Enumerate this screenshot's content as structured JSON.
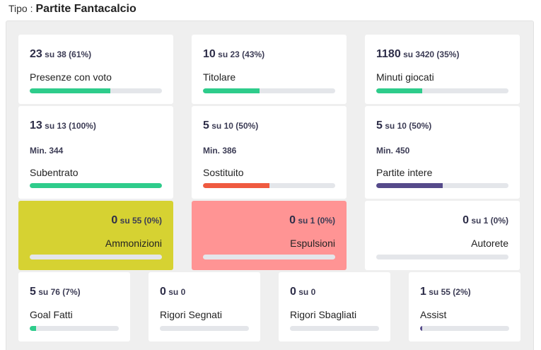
{
  "header": {
    "tipo_label": "Tipo :",
    "title": "Partite Fantacalcio"
  },
  "colors": {
    "green": "#2ecc8b",
    "red": "#ef5a40",
    "purple": "#554a8a",
    "yellow": "#d6d232",
    "pink": "#ff9494"
  },
  "row1": [
    {
      "value": "23",
      "rest": "su 38 (61%)",
      "label": "Presenze con voto",
      "fraction": 0.61
    },
    {
      "value": "10",
      "rest": "su 23 (43%)",
      "label": "Titolare",
      "fraction": 0.43
    },
    {
      "value": "1180",
      "rest": "su 3420 (35%)",
      "label": "Minuti giocati",
      "fraction": 0.35
    }
  ],
  "row2": [
    {
      "value": "13",
      "rest": "su 13 (100%)",
      "min": "Min. 344",
      "label": "Subentrato",
      "fraction": 1.0
    },
    {
      "value": "5",
      "rest": "su 10 (50%)",
      "min": "Min. 386",
      "label": "Sostituito",
      "fraction": 0.5
    },
    {
      "value": "5",
      "rest": "su 10 (50%)",
      "min": "Min. 450",
      "label": "Partite intere",
      "fraction": 0.5
    }
  ],
  "row3": [
    {
      "value": "0",
      "rest": "su 55 (0%)",
      "label": "Ammonizioni",
      "fraction": 0
    },
    {
      "value": "0",
      "rest": "su 1 (0%)",
      "label": "Espulsioni",
      "fraction": 0
    },
    {
      "value": "0",
      "rest": "su 1 (0%)",
      "label": "Autorete",
      "fraction": 0
    }
  ],
  "row4": [
    {
      "value": "5",
      "rest": "su 76 (7%)",
      "label": "Goal Fatti",
      "fraction": 0.07
    },
    {
      "value": "0",
      "rest": "su 0",
      "label": "Rigori Segnati",
      "fraction": 0
    },
    {
      "value": "0",
      "rest": "su 0",
      "label": "Rigori Sbagliati",
      "fraction": 0
    },
    {
      "value": "1",
      "rest": "su 55 (2%)",
      "label": "Assist",
      "fraction": 0.02
    }
  ]
}
